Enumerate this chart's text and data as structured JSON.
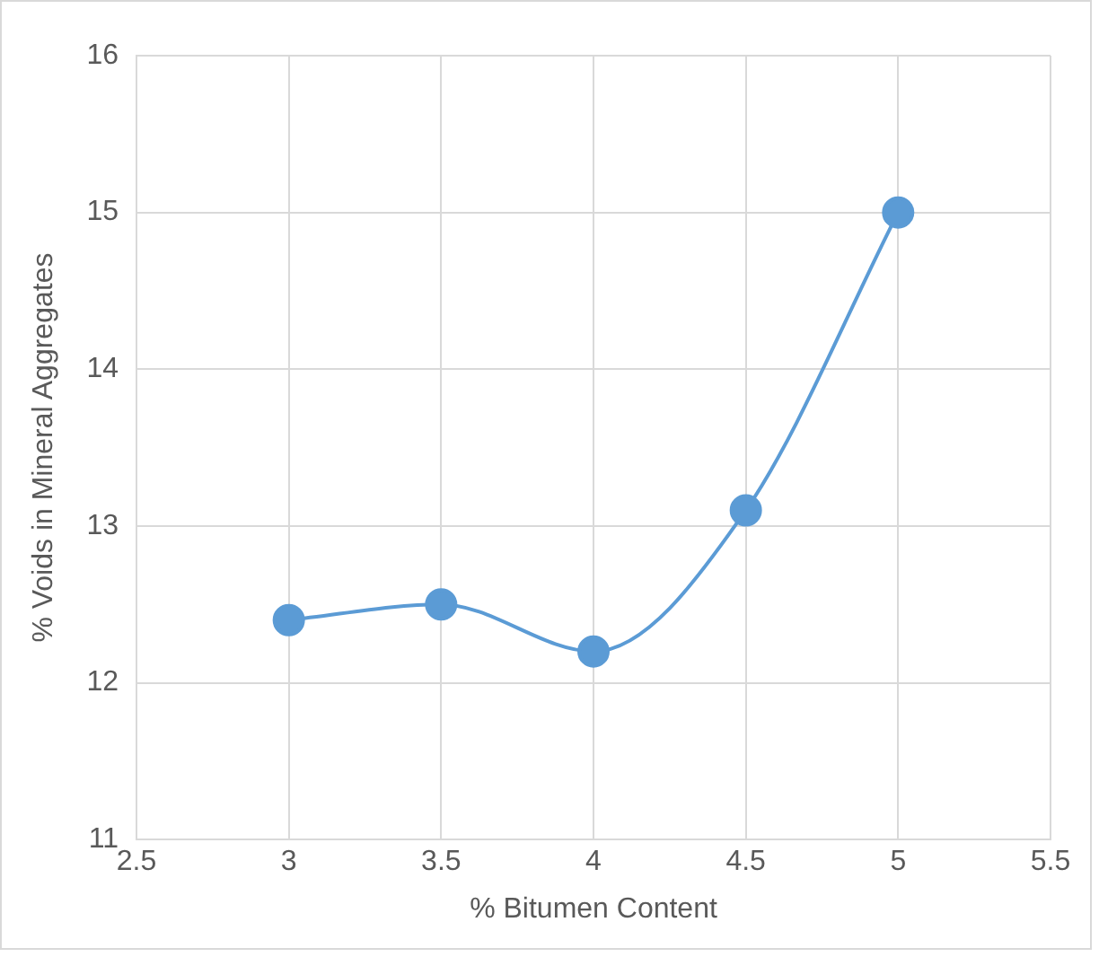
{
  "chart_data": {
    "type": "line",
    "xlabel": "% Bitumen Content",
    "ylabel": "% Voids in Mineral Aggregates",
    "x": [
      3,
      3.5,
      4,
      4.5,
      5
    ],
    "series": [
      {
        "color": "#5b9bd5",
        "values": [
          12.4,
          12.5,
          12.2,
          13.1,
          15.0
        ]
      }
    ],
    "xlim": [
      2.5,
      5.5
    ],
    "xticks": [
      {
        "value": 2.5,
        "label": "2.5"
      },
      3,
      {
        "value": 3.5,
        "label": "3.5"
      },
      4,
      {
        "value": 4.5,
        "label": "4.5"
      },
      5,
      {
        "value": 5.5,
        "label": "5.5"
      }
    ],
    "ylim": [
      11,
      16
    ],
    "yticks": [
      11,
      12,
      13,
      14,
      15,
      16
    ],
    "grid": true,
    "legend": false,
    "marker": "circle",
    "line_style": "solid"
  }
}
